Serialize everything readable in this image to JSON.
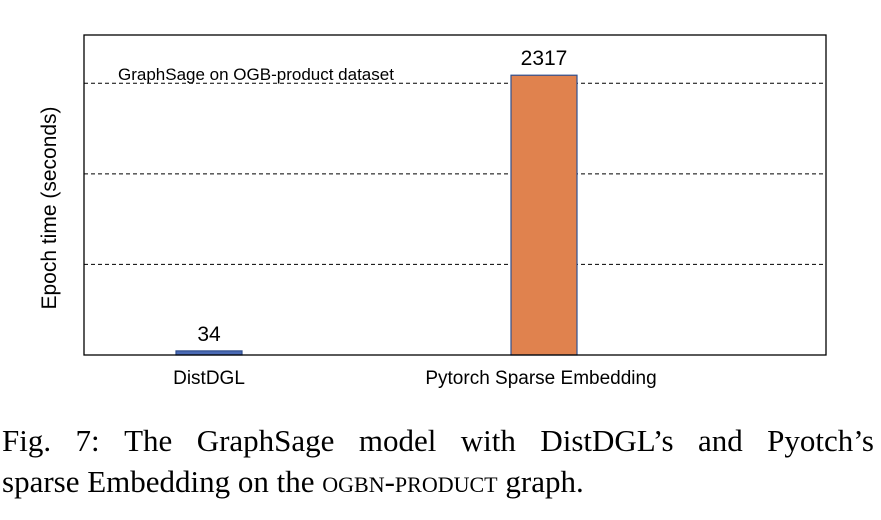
{
  "chart_data": {
    "type": "bar",
    "title": "GraphSage on OGB-product dataset",
    "ylabel": "Epoch time (seconds)",
    "xlabel": "",
    "categories": [
      "DistDGL",
      "Pytorch Sparse Embedding"
    ],
    "values": [
      34,
      2317
    ],
    "data_labels": [
      "34",
      "2317"
    ],
    "ylim": [
      0,
      2650
    ],
    "gridlines_y": [
      750,
      1500,
      2250
    ],
    "grid": "horizontal dashed",
    "colors": [
      "#4a6ab5",
      "#e0824e"
    ],
    "bar_edge_colors": [
      "#2f4f8f",
      "#2f4f8f"
    ]
  },
  "caption": {
    "words": [
      "Fig.",
      "7:",
      "The",
      "GraphSage",
      "model",
      "with",
      "DistDGL’s",
      "and",
      "Pyotch’s"
    ],
    "line2_before": "sparse Embedding on the ",
    "line2_smallcaps": "ogbn-product",
    "line2_after": " graph."
  }
}
